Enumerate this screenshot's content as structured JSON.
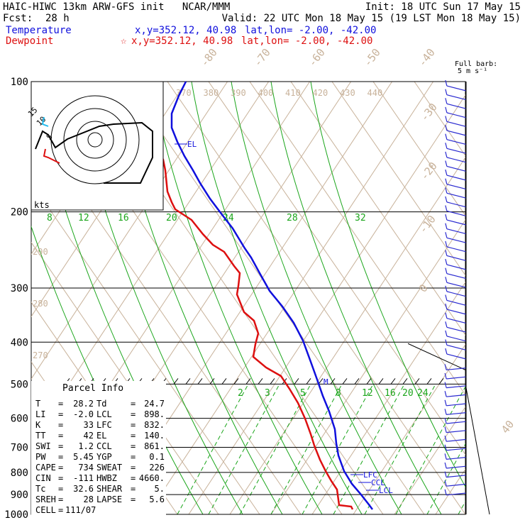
{
  "header": {
    "model_line": "HAIC-HIWC 13km ARW-GFS init   NCAR/MMM",
    "init_line": "Init: 18 UTC Sun 17 May 15",
    "fcst_label": "Fcst:",
    "fcst_value": "28 h",
    "valid_line": "Valid: 22 UTC Mon 18 May 15 (19 LST Mon 18 May 15)",
    "temp_label": "Temperature",
    "temp_xy": "x,y=352.12, 40.98",
    "temp_latlon": "lat,lon= -2.00, -42.00",
    "dew_label": "Dewpoint",
    "dew_marker": "☆",
    "dew_xy": "x,y=352.12, 40.98",
    "dew_latlon": "lat,lon= -2.00, -42.00"
  },
  "wind_key": {
    "title": "Full barb:",
    "unit": "5 m s⁻¹"
  },
  "hodograph": {
    "units_label": "kts",
    "ring_labels": [
      "15",
      "10",
      "5"
    ]
  },
  "colors": {
    "temperature": "#1010dd",
    "dewpoint": "#dd1010",
    "isotherm": "#c8b29a",
    "dry_adiabat": "#c8b29a",
    "moist_adiabat": "#1aa51a",
    "mixing_ratio": "#1aa51a",
    "wind_barb": "#2a2ad0",
    "hodograph_cyan": "#22bbee"
  },
  "chart_data": {
    "type": "skew-T log-P sounding",
    "pressure_levels": [
      "100",
      "200",
      "300",
      "400",
      "500",
      "600",
      "700",
      "800",
      "900",
      "1000"
    ],
    "isotherm_labels": [
      "-80",
      "-70",
      "-60",
      "-50",
      "-40",
      "-30",
      "-20",
      "-10",
      "0",
      "40"
    ],
    "theta_e_labels": [
      "370",
      "380",
      "390",
      "400",
      "410",
      "420",
      "430",
      "440"
    ],
    "dry_adiabat_labels": [
      "290",
      "280",
      "270"
    ],
    "saturation_adiabat_labels": [
      "8",
      "12",
      "16",
      "20",
      "24",
      "28",
      "32"
    ],
    "mixing_ratio_labels": [
      "2",
      "3",
      "5",
      "8",
      "12",
      "16",
      "20",
      "24"
    ],
    "level_markers": [
      "EL",
      "LFC",
      "CCL",
      "LCL",
      "M"
    ],
    "temperature_profile_pressure": [
      1000,
      980,
      950,
      900,
      850,
      800,
      750,
      700,
      650,
      600,
      550,
      500,
      450,
      400,
      350,
      300,
      250,
      200,
      170,
      150,
      130,
      115,
      100
    ],
    "dewpoint_profile_pressure": [
      1000,
      980,
      950,
      900,
      850,
      800,
      750,
      700,
      650,
      600,
      550,
      500,
      450,
      400,
      350,
      320,
      300,
      260,
      220,
      200,
      190,
      150,
      130,
      115,
      100
    ]
  },
  "parcel_info": {
    "title": "Parcel Info",
    "rows": [
      [
        "T",
        "=",
        "28.2",
        "Td",
        "=",
        "24.7"
      ],
      [
        "LI",
        "=",
        "-2.0",
        "LCL",
        "=",
        "898."
      ],
      [
        "K",
        "=",
        "33",
        "LFC",
        "=",
        "832."
      ],
      [
        "TT",
        "=",
        "42",
        "EL",
        "=",
        "140."
      ],
      [
        "SWI",
        "=",
        "1.2",
        "CCL",
        "=",
        "861."
      ],
      [
        "PW",
        "=",
        "5.45",
        "YGP",
        "=",
        "0.1"
      ],
      [
        "CAPE",
        "=",
        "734",
        "SWEAT",
        "=",
        "226"
      ],
      [
        "CIN",
        "=",
        "-111",
        "HWBZ",
        "=",
        "4660."
      ],
      [
        "Tc",
        "=",
        "32.6",
        "SHEAR",
        "=",
        "5."
      ],
      [
        "SREH",
        "=",
        "28",
        "LAPSE",
        "=",
        "5.6"
      ],
      [
        "CELL",
        "=",
        "111/07",
        "",
        "",
        ""
      ]
    ]
  }
}
